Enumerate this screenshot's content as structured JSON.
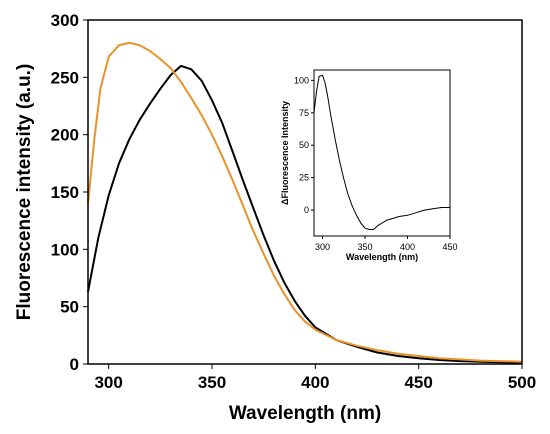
{
  "chart_data": [
    {
      "type": "line",
      "title": "",
      "xlabel": "Wavelength (nm)",
      "ylabel": "Fluorescence intensity (a.u.)",
      "xlim": [
        290,
        500
      ],
      "ylim": [
        0,
        300
      ],
      "xticks": [
        300,
        350,
        400,
        450,
        500
      ],
      "yticks": [
        0,
        50,
        100,
        150,
        200,
        250,
        300
      ],
      "grid": false,
      "legend": "none",
      "series": [
        {
          "color": "#000000",
          "x": [
            290,
            295,
            300,
            305,
            310,
            315,
            320,
            325,
            330,
            335,
            340,
            345,
            350,
            355,
            360,
            365,
            370,
            375,
            380,
            385,
            390,
            395,
            400,
            410,
            420,
            430,
            440,
            450,
            460,
            470,
            480,
            490,
            500
          ],
          "y": [
            63,
            110,
            147,
            175,
            196,
            213,
            227,
            240,
            252,
            260,
            257,
            247,
            230,
            210,
            185,
            160,
            136,
            112,
            90,
            71,
            55,
            42,
            32,
            21,
            15,
            10,
            7,
            5,
            3.5,
            2.5,
            2,
            1.5,
            1
          ]
        },
        {
          "color": "#e8932a",
          "x": [
            290,
            293,
            296,
            300,
            305,
            310,
            315,
            320,
            325,
            330,
            335,
            340,
            345,
            350,
            355,
            360,
            365,
            370,
            375,
            380,
            385,
            390,
            395,
            400,
            410,
            420,
            430,
            440,
            450,
            460,
            470,
            480,
            490,
            500
          ],
          "y": [
            140,
            195,
            240,
            268,
            278,
            280,
            278,
            273,
            266,
            258,
            246,
            232,
            217,
            200,
            181,
            160,
            138,
            116,
            96,
            77,
            61,
            47,
            37,
            30,
            21,
            16,
            12,
            9,
            7,
            5,
            4,
            3,
            2.5,
            2
          ]
        }
      ]
    },
    {
      "type": "line",
      "title": "",
      "xlabel": "Wavelength (nm)",
      "ylabel": "ΔFluorescence Intensity",
      "xlim": [
        290,
        450
      ],
      "ylim": [
        -20,
        108
      ],
      "xticks": [
        300,
        350,
        400,
        450
      ],
      "yticks": [
        0,
        25,
        50,
        75,
        100
      ],
      "grid": false,
      "legend": "none",
      "series": [
        {
          "color": "#000000",
          "x": [
            290,
            293,
            296,
            300,
            303,
            306,
            310,
            315,
            320,
            325,
            330,
            335,
            340,
            345,
            350,
            355,
            360,
            365,
            370,
            375,
            380,
            390,
            400,
            410,
            420,
            430,
            440,
            450
          ],
          "y": [
            75,
            92,
            103,
            104,
            98,
            88,
            72,
            54,
            38,
            24,
            12,
            3,
            -4,
            -10,
            -14,
            -15,
            -15,
            -12,
            -10,
            -8,
            -7,
            -5,
            -4,
            -2,
            0,
            1,
            2,
            2
          ]
        }
      ]
    }
  ]
}
